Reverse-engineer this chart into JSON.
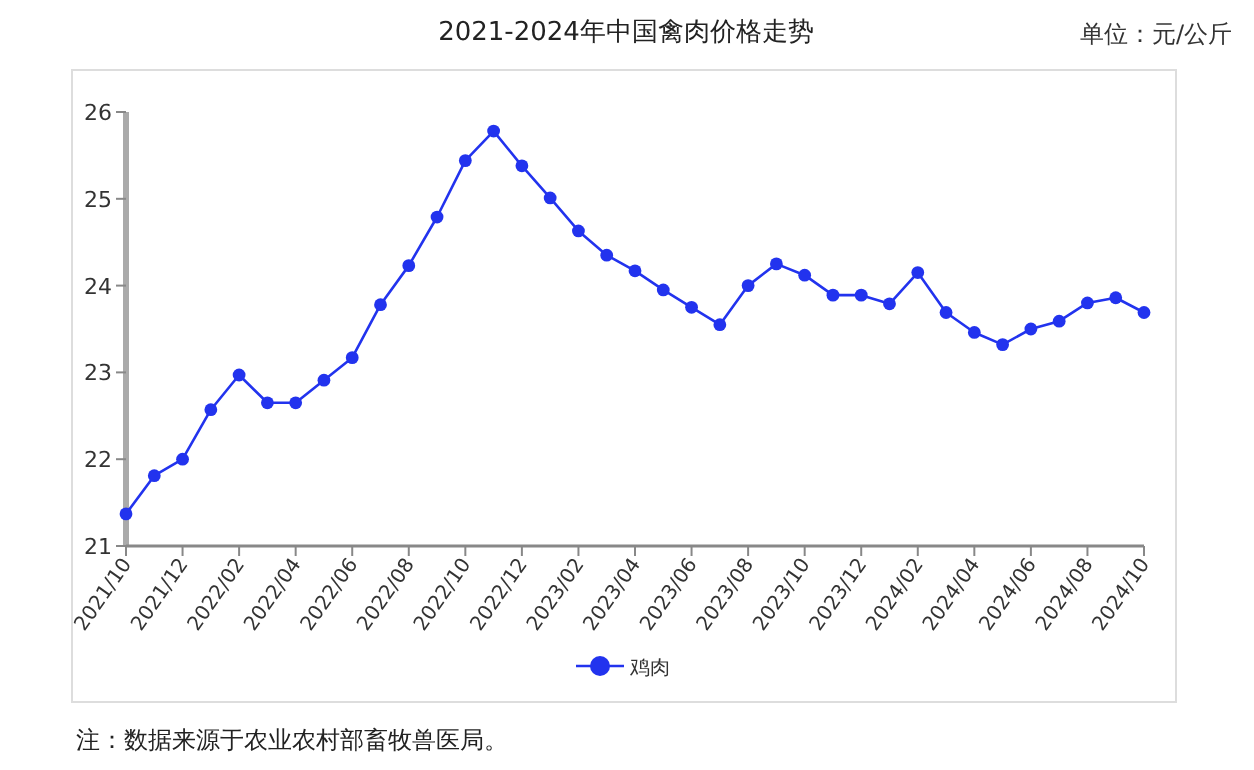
{
  "chart_data": {
    "type": "line",
    "title": "2021-2024年中国禽肉价格走势",
    "ylabel": "单位：元/公斤",
    "annotations": [
      "注：数据来源于农业农村部畜牧兽医局。"
    ],
    "categories": [
      "2021/10",
      null,
      "2021/12",
      null,
      "2022/02",
      null,
      "2022/04",
      null,
      "2022/06",
      null,
      "2022/08",
      null,
      "2022/10",
      null,
      "2022/12",
      null,
      "2023/02",
      null,
      "2023/04",
      null,
      "2023/06",
      null,
      "2023/08",
      null,
      "2023/10",
      null,
      "2023/12",
      null,
      "2024/02",
      null,
      "2024/04",
      null,
      "2024/06",
      null,
      "2024/08",
      null,
      "2024/10"
    ],
    "series": [
      {
        "name": "鸡肉",
        "color": "#2233ee",
        "values": [
          21.37,
          21.81,
          22.0,
          22.57,
          22.97,
          22.65,
          22.65,
          22.91,
          23.17,
          23.78,
          24.23,
          24.79,
          25.44,
          25.78,
          25.38,
          25.01,
          24.63,
          24.35,
          24.17,
          23.95,
          23.75,
          23.55,
          24.0,
          24.25,
          24.12,
          23.89,
          23.89,
          23.79,
          24.15,
          23.69,
          23.46,
          23.32,
          23.5,
          23.59,
          23.8,
          23.86,
          23.69
        ]
      }
    ],
    "ylim": [
      21,
      26
    ],
    "yticks": [
      21,
      22,
      23,
      24,
      25,
      26
    ],
    "grid": false,
    "legend": "bottom",
    "marker": "circle",
    "line_style": "solid"
  }
}
